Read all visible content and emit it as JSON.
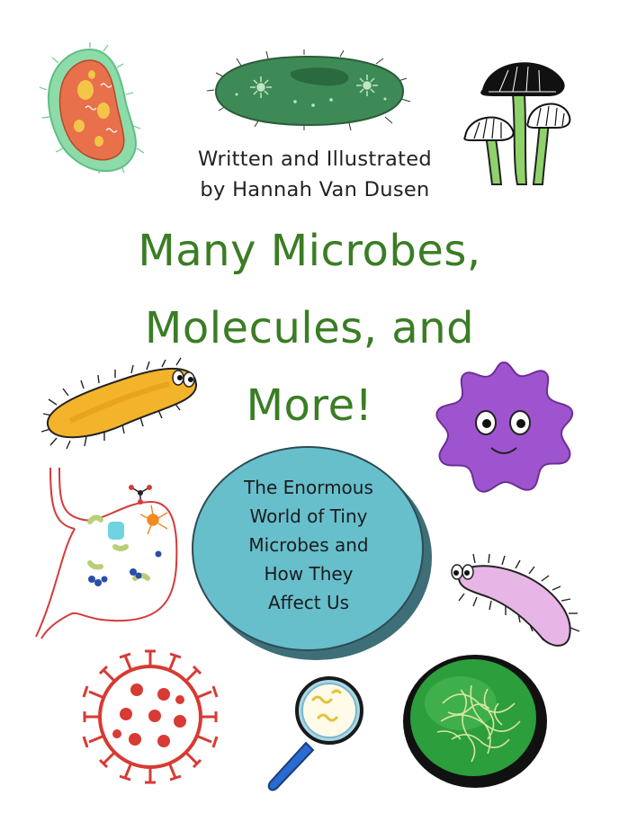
{
  "cover": {
    "byline": [
      "Written and Illustrated",
      "by Hannah Van Dusen"
    ],
    "title": [
      "Many Microbes,",
      "Molecules, and",
      "More!"
    ],
    "subtitle": [
      "The Enormous",
      "World of Tiny",
      "Microbes and",
      "How They",
      "Affect Us"
    ]
  },
  "colors": {
    "title": "#3a7d24",
    "badge": "#67bfcc"
  },
  "icons": [
    "paramecium-icon",
    "green-cell-icon",
    "mushrooms-icon",
    "bacterium-orange-icon",
    "purple-virus-icon",
    "cell-diagram-icon",
    "pink-bacterium-icon",
    "coronavirus-icon",
    "magnifying-glass-icon",
    "petri-dish-icon"
  ]
}
